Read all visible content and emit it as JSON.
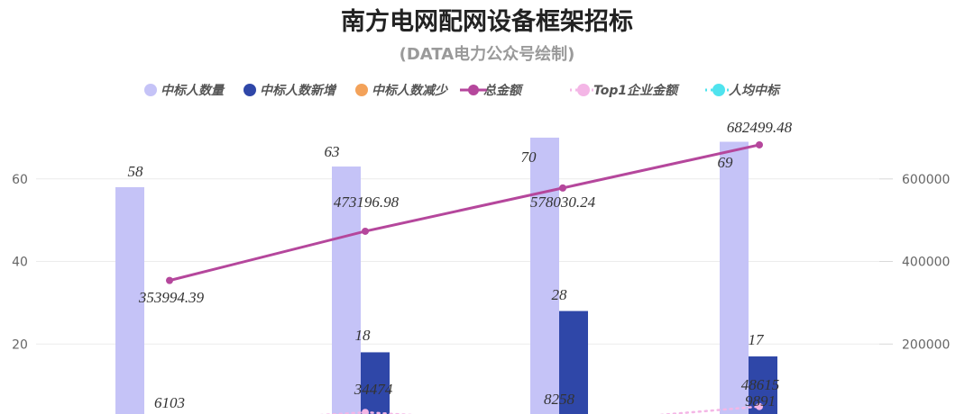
{
  "title": "南方电网配网设备框架招标",
  "subtitle": "(DATA电力公众号绘制)",
  "legend": [
    {
      "name": "中标人数量",
      "kind": "circle",
      "color": "#c5c3f7"
    },
    {
      "name": "中标人数新增",
      "kind": "circle",
      "color": "#2f47a8"
    },
    {
      "name": "中标人数减少",
      "kind": "circle",
      "color": "#f3a25a"
    },
    {
      "name": "总金额",
      "kind": "line-circle",
      "color": "#b5479c"
    },
    {
      "name": "Top1企业金额",
      "kind": "dotted-circle",
      "color": "#f4b6e6"
    },
    {
      "name": "人均中标",
      "kind": "dotted-circle",
      "color": "#4fe3ee"
    }
  ],
  "chart_data": {
    "type": "bar",
    "title": "南方电网配网设备框架招标",
    "subtitle": "(DATA电力公众号绘制)",
    "categories": [
      "",
      "",
      "",
      ""
    ],
    "y_left": {
      "ticks": [
        "20",
        "40",
        "60"
      ],
      "min": 0,
      "max": 75
    },
    "y_right": {
      "ticks": [
        "200000",
        "400000",
        "600000"
      ],
      "min": 0,
      "max": 750000
    },
    "grid": true,
    "legend_position": "top",
    "series": [
      {
        "name": "中标人数量",
        "type": "bar",
        "axis": "left",
        "color": "#c5c3f7",
        "values": [
          58,
          63,
          70,
          69
        ],
        "labels": [
          "58",
          "63",
          "70",
          "69"
        ]
      },
      {
        "name": "中标人数新增",
        "type": "bar",
        "axis": "left",
        "color": "#2f47a8",
        "values": [
          0,
          18,
          28,
          17
        ],
        "labels": [
          "",
          "18",
          "28",
          "17"
        ]
      },
      {
        "name": "总金额",
        "type": "line",
        "axis": "right",
        "color": "#b5479c",
        "values": [
          353994.39,
          473196.98,
          578030.24,
          682499.48
        ],
        "labels": [
          "353994.39",
          "473196.98",
          "578030.24",
          "682499.48"
        ]
      },
      {
        "name": "Top1企业金额",
        "type": "line",
        "axis": "right",
        "color": "#f4b6e6",
        "values": [
          6103,
          34474,
          8258,
          48615
        ],
        "labels": [
          "6103",
          "34474",
          "8258",
          "48615"
        ]
      },
      {
        "name": "人均中标",
        "type": "line",
        "axis": "right",
        "color": "#4fe3ee",
        "values": [
          6103,
          7511,
          8258,
          9891
        ],
        "labels": [
          "",
          "",
          "",
          "9891"
        ]
      }
    ]
  }
}
